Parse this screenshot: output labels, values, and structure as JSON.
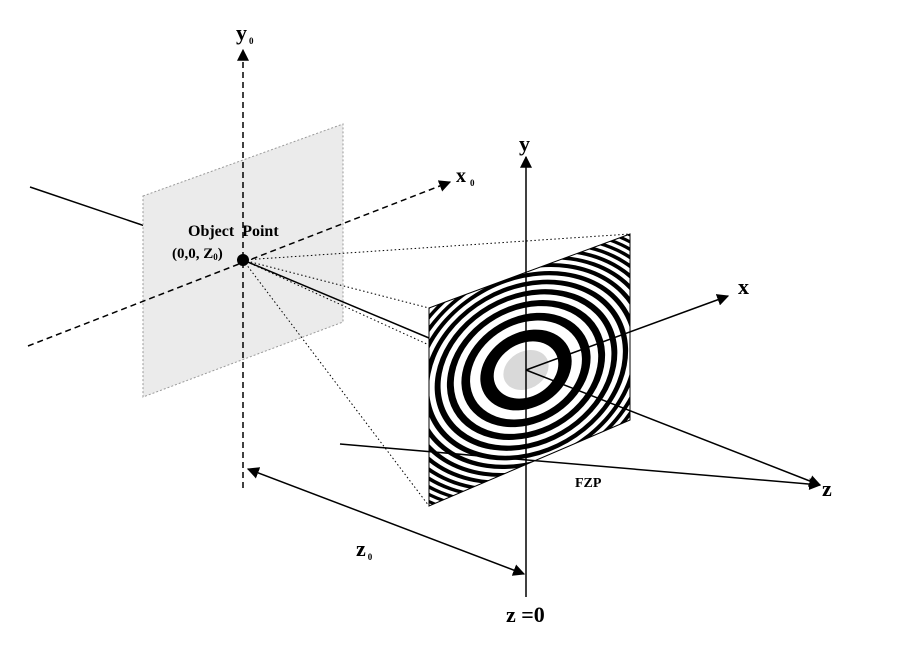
{
  "labels": {
    "y0": {
      "main": "y",
      "sub": "0"
    },
    "x0": {
      "main": "x",
      "sub": "0"
    },
    "y": "y",
    "x": "x",
    "z": "z",
    "object_point": "Object  Point",
    "object_coord_prefix": "(0,0, Z",
    "object_coord_sub": "0",
    "object_coord_suffix": ")",
    "z0": {
      "main": "z",
      "sub": "0"
    },
    "fzp": "FZP",
    "z_origin": "z =0"
  },
  "colors": {
    "line": "#000000",
    "object_plane_fill": "#ebebeb",
    "object_plane_stroke": "#9a9a9a",
    "fzp_dark": "#000000",
    "fzp_light": "#ffffff"
  }
}
